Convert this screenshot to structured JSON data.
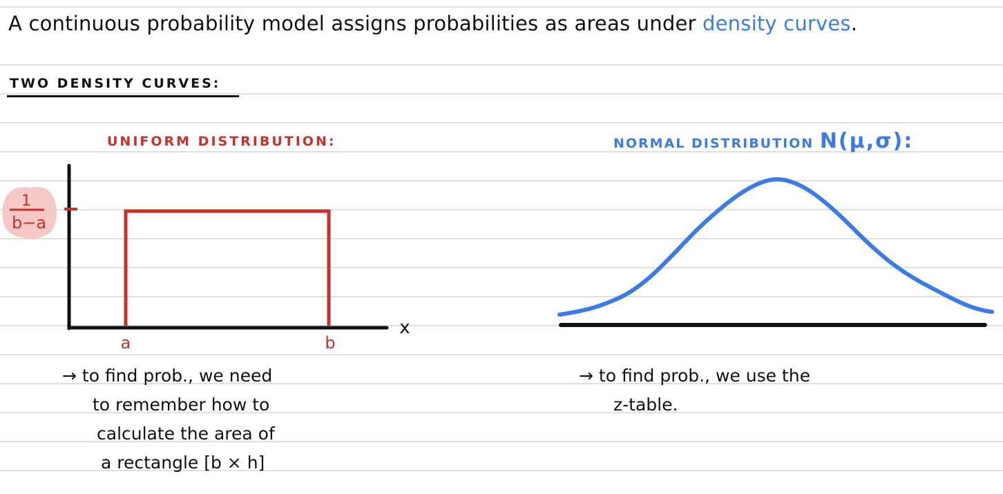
{
  "headline": {
    "text": "A continuous probability model assigns probabilities as areas under ",
    "highlight": "density curves",
    "end": "."
  },
  "section_title": "TWO DENSITY CURVES:",
  "uniform": {
    "title": "UNIFORM DISTRIBUTION:",
    "height_label_num": "1",
    "height_label_den": "b−a",
    "a_label": "a",
    "b_label": "b",
    "x_label": "x",
    "notes": [
      "→ to find prob., we need",
      "to remember how to",
      "calculate the area of",
      "a rectangle [b × h]"
    ]
  },
  "normal": {
    "title": "NORMAL DISTRIBUTION",
    "symbol": "N(μ,σ):",
    "notes": [
      "→ to find prob., we use the",
      "z-table."
    ]
  },
  "colors": {
    "red": "#c8302a",
    "blue": "#3b7be8",
    "pink": "#f6c9c6",
    "rule": "#d6d6d6"
  }
}
